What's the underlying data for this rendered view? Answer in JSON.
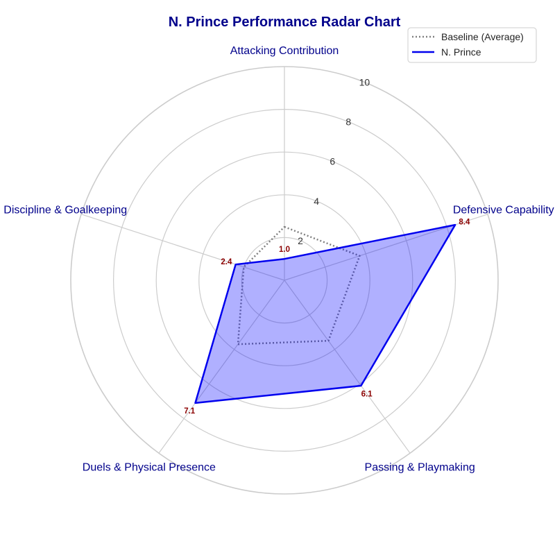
{
  "chart_data": {
    "type": "radar",
    "title": "N. Prince Performance Radar Chart",
    "categories": [
      "Attacking Contribution",
      "Defensive Capability",
      "Passing & Playmaking",
      "Duels & Physical Presence",
      "Discipline & Goalkeeping"
    ],
    "rlim": [
      0,
      10
    ],
    "rticks": [
      2,
      4,
      6,
      8,
      10
    ],
    "grid": true,
    "legend": "top-right",
    "series": [
      {
        "name": "Baseline (Average)",
        "values": [
          2.5,
          3.7,
          3.5,
          3.7,
          2.0
        ],
        "style": "dotted",
        "color": "#808080"
      },
      {
        "name": "N. Prince",
        "values": [
          1.0,
          8.4,
          6.1,
          7.1,
          2.4
        ],
        "style": "solid",
        "color": "#0000ee",
        "fill": "#0000ff"
      }
    ],
    "value_labels": [
      "1.0",
      "8.4",
      "6.1",
      "7.1",
      "2.4"
    ]
  },
  "colors": {
    "title": "#00008b",
    "category_label": "#00008b",
    "value_label": "#8b0000",
    "grid": "#cccccc"
  }
}
